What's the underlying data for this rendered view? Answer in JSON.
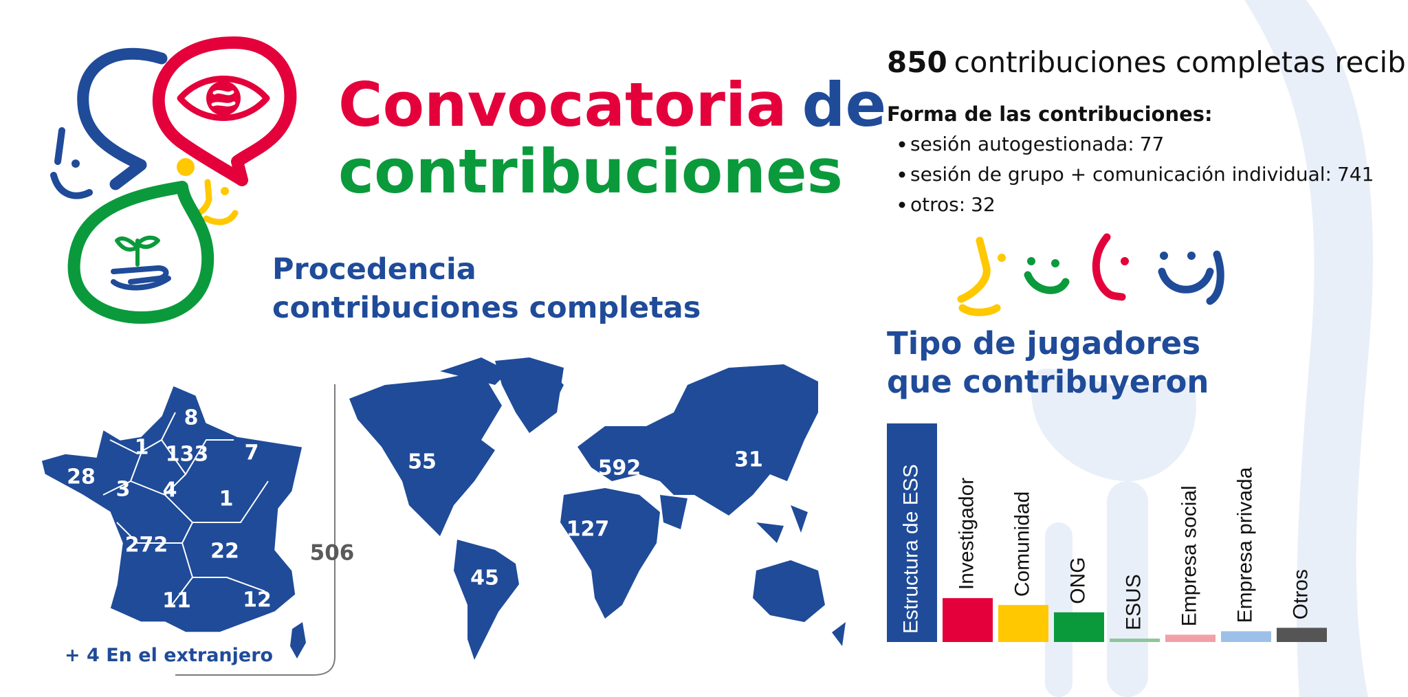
{
  "header": {
    "title_word1": "Convocatoria",
    "title_word2": "de",
    "title_line2": "contribuciones"
  },
  "origin": {
    "heading_line1": "Procedencia",
    "heading_line2": "contribuciones completas",
    "france_regions": [
      8,
      1,
      133,
      7,
      28,
      3,
      4,
      1,
      272,
      22,
      11,
      12
    ],
    "france_total": 506,
    "abroad": "+ 4 En el extranjero",
    "world_regions": [
      55,
      592,
      31,
      127,
      45
    ]
  },
  "summary": {
    "total": 850,
    "total_text": "contribuciones completas recibidas",
    "forms_heading": "Forma de las contribuciones:",
    "forms": [
      {
        "label": "sesión autogestionada:",
        "count": 77
      },
      {
        "label": "sesión de grupo + comunicación individual:",
        "count": 741
      },
      {
        "label": "otros:",
        "count": 32
      }
    ]
  },
  "chart_data": {
    "type": "bar",
    "title": [
      "Tipo de jugadores",
      "que contribuyeron"
    ],
    "categories": [
      "Estructura de ESS",
      "Investigador",
      "Comunidad",
      "ONG",
      "ESUS",
      "Empresa social",
      "Empresa privada",
      "Otros"
    ],
    "values": [
      508,
      102,
      86,
      69,
      8,
      17,
      25,
      33
    ],
    "colors": [
      "#1f4b99",
      "#e4003a",
      "#ffc800",
      "#0a9a3c",
      "#8cc79b",
      "#f2a0a8",
      "#9dc0e8",
      "#555555"
    ],
    "ylim": [
      0,
      508
    ]
  }
}
